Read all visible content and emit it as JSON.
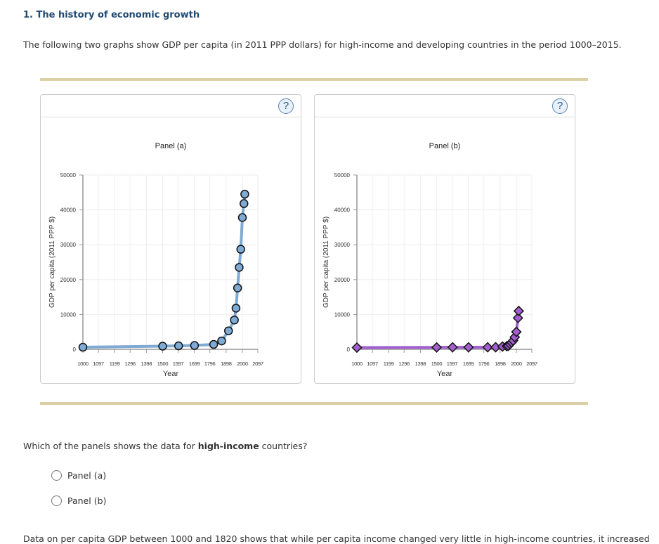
{
  "title": "1. The history of economic growth",
  "intro": "The following two graphs show GDP per capita (in 2011 PPP dollars) for high-income and developing countries in the period 1000–2015.",
  "help_label": "?",
  "question": {
    "prefix": "Which of the panels shows the data for ",
    "bold": "high-income",
    "suffix": " countries?"
  },
  "options": [
    "Panel (a)",
    "Panel (b)"
  ],
  "footer": "Data on per capita GDP between 1000 and 1820 shows that while per capita income changed very little in high-income countries, it increased",
  "chart_data": [
    {
      "type": "line",
      "title": "Panel (a)",
      "xlabel": "Year",
      "ylabel": "GDP per capita (2011 PPP $)",
      "xlim": [
        1000,
        2097
      ],
      "ylim": [
        0,
        50000
      ],
      "xticks": [
        "1000",
        "1097",
        "1199",
        "1296",
        "1398",
        "1500",
        "1597",
        "1699",
        "1796",
        "1898",
        "2000",
        "2097"
      ],
      "yticks": [
        "0",
        "10000",
        "20000",
        "30000",
        "40000",
        "50000"
      ],
      "color": "#7eaad4",
      "marker": "circle",
      "x": [
        1000,
        1500,
        1600,
        1700,
        1820,
        1870,
        1913,
        1950,
        1960,
        1970,
        1980,
        1990,
        2000,
        2010,
        2015
      ],
      "y": [
        600,
        900,
        1000,
        1100,
        1400,
        2400,
        5300,
        8400,
        11800,
        17600,
        23500,
        28700,
        37800,
        41800,
        44500
      ]
    },
    {
      "type": "line",
      "title": "Panel (b)",
      "xlabel": "Year",
      "ylabel": "GDP per capita (2011 PPP $)",
      "xlim": [
        1000,
        2097
      ],
      "ylim": [
        0,
        50000
      ],
      "xticks": [
        "1000",
        "1097",
        "1199",
        "1296",
        "1398",
        "1500",
        "1597",
        "1699",
        "1796",
        "1898",
        "2000",
        "2097"
      ],
      "yticks": [
        "0",
        "10000",
        "20000",
        "30000",
        "40000",
        "50000"
      ],
      "color": "#a35fd1",
      "marker": "diamond",
      "x": [
        1000,
        1500,
        1600,
        1700,
        1820,
        1870,
        1913,
        1940,
        1950,
        1960,
        1970,
        1980,
        1990,
        2000,
        2010,
        2015
      ],
      "y": [
        500,
        550,
        580,
        580,
        580,
        600,
        800,
        900,
        1000,
        1500,
        2000,
        2500,
        3500,
        5000,
        9000,
        11000
      ]
    }
  ]
}
